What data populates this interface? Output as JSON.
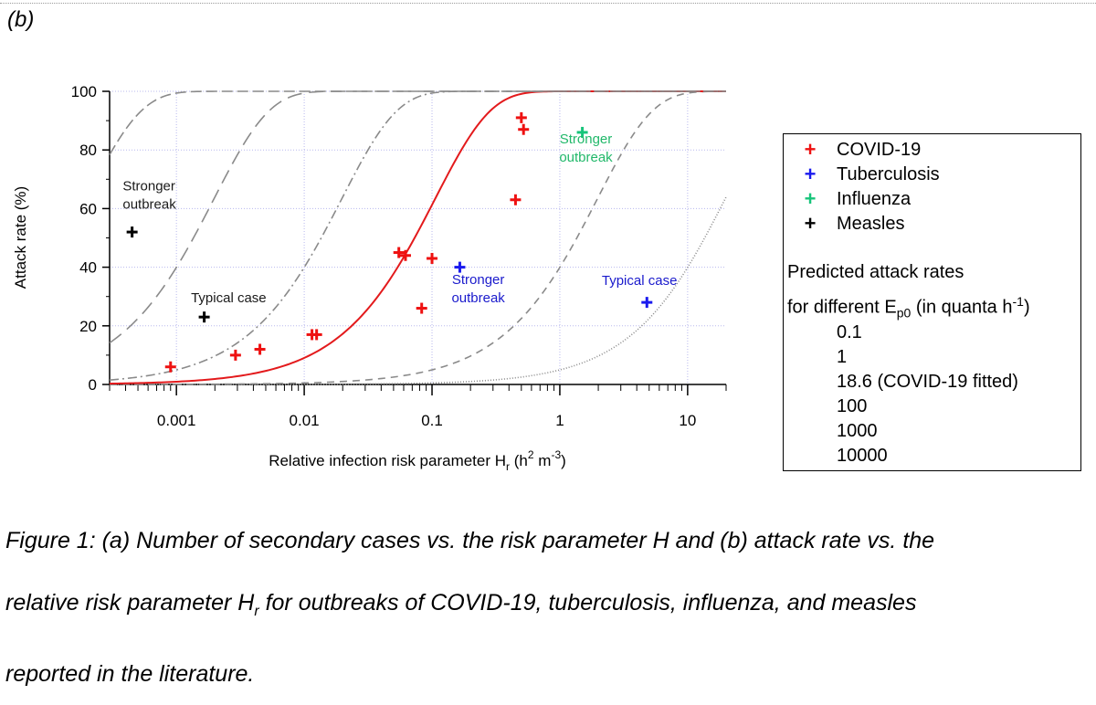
{
  "panel_label": "(b)",
  "chart_data": {
    "type": "scatter",
    "xscale": "log",
    "xlim": [
      0.0003,
      20
    ],
    "ylim": [
      0,
      100
    ],
    "xlabel": "Relative infection risk parameter H",
    "xlabel_sub": "r",
    "xlabel_units_pre": " (h",
    "xlabel_sup1": "2",
    "xlabel_units_mid": " m",
    "xlabel_sup2": "-3",
    "xlabel_units_post": ")",
    "ylabel": "Attack rate (%)",
    "grid": true,
    "x_ticks": [
      {
        "value": 0.001,
        "label": "0.001"
      },
      {
        "value": 0.01,
        "label": "0.01"
      },
      {
        "value": 0.1,
        "label": "0.1"
      },
      {
        "value": 1,
        "label": "1"
      },
      {
        "value": 10,
        "label": "10"
      }
    ],
    "y_ticks": [
      {
        "value": 0,
        "label": "0"
      },
      {
        "value": 20,
        "label": "20"
      },
      {
        "value": 40,
        "label": "40"
      },
      {
        "value": 60,
        "label": "60"
      },
      {
        "value": 80,
        "label": "80"
      },
      {
        "value": 100,
        "label": "100"
      }
    ],
    "curves": [
      {
        "name": "0.1",
        "Ep0": 0.1,
        "color": "#8a8a8a",
        "dash": "1,2",
        "width": 1.6
      },
      {
        "name": "1",
        "Ep0": 1,
        "color": "#8a8a8a",
        "dash": "8,6",
        "width": 1.6
      },
      {
        "name": "18.6 (COVID-19 fitted)",
        "Ep0": 18.6,
        "color": "#e31a1c",
        "dash": "",
        "width": 2
      },
      {
        "name": "100",
        "Ep0": 100,
        "color": "#8a8a8a",
        "dash": "10,4,2,4",
        "width": 1.6
      },
      {
        "name": "1000",
        "Ep0": 1000,
        "color": "#8a8a8a",
        "dash": "16,8",
        "width": 1.6
      },
      {
        "name": "10000",
        "Ep0": 10000,
        "color": "#8a8a8a",
        "dash": "12,5",
        "width": 1.6
      }
    ],
    "series": [
      {
        "name": "COVID-19",
        "color": "#ee1111",
        "points": [
          [
            0.0009,
            6
          ],
          [
            0.0029,
            10
          ],
          [
            0.0045,
            12
          ],
          [
            0.0115,
            17
          ],
          [
            0.0125,
            17
          ],
          [
            0.055,
            45
          ],
          [
            0.062,
            44
          ],
          [
            0.083,
            26
          ],
          [
            0.1,
            43
          ],
          [
            0.45,
            63
          ],
          [
            0.5,
            91
          ],
          [
            0.52,
            87
          ]
        ]
      },
      {
        "name": "Tuberculosis",
        "color": "#1a1aee",
        "points": [
          [
            0.165,
            40
          ],
          [
            4.8,
            28
          ]
        ]
      },
      {
        "name": "Influenza",
        "color": "#17c47a",
        "points": [
          [
            1.5,
            86
          ]
        ]
      },
      {
        "name": "Measles",
        "color": "#000000",
        "points": [
          [
            0.00045,
            52
          ],
          [
            0.00165,
            23
          ]
        ]
      }
    ],
    "annotations": [
      {
        "lines": [
          "Stronger",
          "outbreak"
        ],
        "x": 0.00038,
        "y": 60,
        "color": "#1a1a1a",
        "align": "start"
      },
      {
        "lines": [
          "Typical case"
        ],
        "x": 0.0013,
        "y": 28,
        "color": "#1a1a1a",
        "align": "start"
      },
      {
        "lines": [
          "Stronger",
          "outbreak"
        ],
        "x": 0.23,
        "y": 28,
        "color": "#1a1acc",
        "align": "middle"
      },
      {
        "lines": [
          "Typical case"
        ],
        "x": 4.2,
        "y": 34,
        "color": "#1a1acc",
        "align": "middle"
      },
      {
        "lines": [
          "Stronger",
          "outbreak"
        ],
        "x": 1.6,
        "y": 76,
        "color": "#21b86a",
        "align": "middle"
      }
    ]
  },
  "legend": {
    "series_title": "",
    "items": [
      {
        "label": "COVID-19",
        "color": "#ee1111"
      },
      {
        "label": "Tuberculosis",
        "color": "#1a1aee"
      },
      {
        "label": "Influenza",
        "color": "#17c47a"
      },
      {
        "label": "Measles",
        "color": "#000000"
      }
    ],
    "heading_line1": "Predicted attack rates",
    "heading_line2_pre": "for different E",
    "heading_line2_sub": "p0",
    "heading_line2_mid": " (in quanta h",
    "heading_line2_sup": "-1",
    "heading_line2_post": ")",
    "curve_labels": [
      "0.1",
      "1",
      "18.6 (COVID-19 fitted)",
      "100",
      "1000",
      "10000"
    ]
  },
  "caption": {
    "line1_prefix": "Figure 1: (a) Number of secondary cases vs. the risk parameter H and (b) attack rate vs. the",
    "line2_pre": "relative risk parameter H",
    "line2_sub": "r",
    "line2_post": " for outbreaks of COVID-19, tuberculosis, influenza, and measles",
    "line3": "reported in the literature."
  }
}
